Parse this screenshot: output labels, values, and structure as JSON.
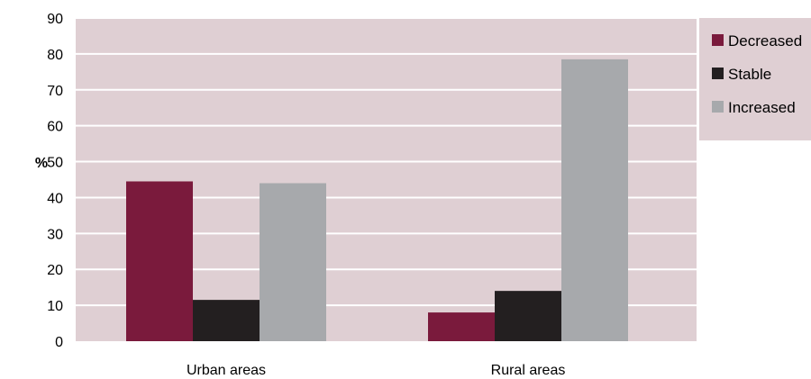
{
  "chart_data": {
    "type": "bar",
    "categories": [
      "Urban areas",
      "Rural areas"
    ],
    "series": [
      {
        "name": "Decreased",
        "values": [
          44.5,
          8
        ],
        "color": "#7a1a3c"
      },
      {
        "name": "Stable",
        "values": [
          11.5,
          14
        ],
        "color": "#231f20"
      },
      {
        "name": "Increased",
        "values": [
          44,
          78.5
        ],
        "color": "#a7a9ac"
      }
    ],
    "ylabel": "%",
    "ylim": [
      0,
      90
    ],
    "yticks": [
      0,
      10,
      20,
      30,
      40,
      50,
      60,
      70,
      80,
      90
    ],
    "grid": true,
    "legend_position": "right",
    "plot_background": "#dfcfd3",
    "gridline_color": "#ffffff"
  }
}
